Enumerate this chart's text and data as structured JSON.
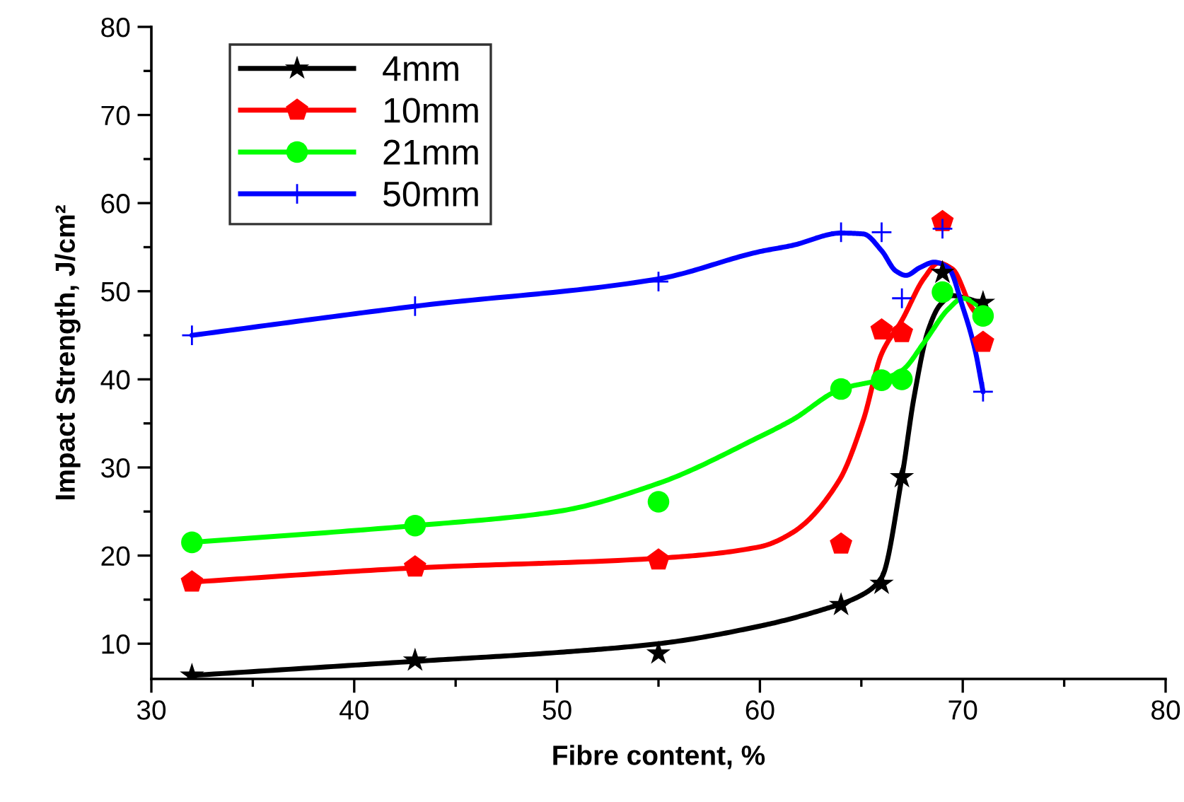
{
  "chart_data": {
    "type": "scatter",
    "xlabel": "Fibre content, %",
    "ylabel": "Impact Strength, J/cm²",
    "xlim": [
      30,
      80
    ],
    "xticks": [
      30,
      40,
      50,
      60,
      70,
      80
    ],
    "ylim": [
      6,
      80
    ],
    "yticks": [
      10,
      20,
      30,
      40,
      50,
      60,
      70,
      80
    ],
    "grid": false,
    "legend": "top left",
    "series": [
      {
        "type": "line",
        "color": "#000000",
        "x": [
          32,
          43,
          50,
          55,
          60,
          63,
          65,
          66,
          67,
          67.6,
          68.3,
          68.9,
          69.5,
          70,
          71
        ],
        "values": [
          6.4,
          8.0,
          9.0,
          10.0,
          12.0,
          13.8,
          15.5,
          17.5,
          28.9,
          38,
          45.6,
          48.5,
          49.5,
          49.3,
          48.6
        ]
      },
      {
        "type": "line",
        "color": "#ff0000",
        "x": [
          32,
          43,
          55,
          60,
          61.6,
          63.9,
          65.1,
          66,
          67,
          68.1,
          68.8,
          69.5,
          70.4,
          71
        ],
        "values": [
          17.0,
          18.6,
          19.7,
          21.0,
          22.6,
          28.5,
          35.4,
          42.9,
          46.7,
          51.5,
          53.2,
          52.5,
          48.3,
          46.4
        ]
      },
      {
        "type": "line",
        "color": "#00ff00",
        "x": [
          32,
          43,
          50,
          55,
          60,
          61.6,
          64,
          66,
          67,
          68.1,
          69.3,
          70,
          71
        ],
        "values": [
          21.5,
          23.4,
          25.0,
          28.2,
          33.5,
          35.4,
          38.9,
          40.0,
          41.0,
          44.2,
          48.0,
          49.2,
          48.0
        ]
      },
      {
        "type": "line",
        "color": "#0000ff",
        "x": [
          32,
          43,
          55,
          60,
          61.6,
          64,
          65.1,
          66,
          66.7,
          67.2,
          67.9,
          68.6,
          69.3,
          70,
          70.6,
          71
        ],
        "values": [
          45.0,
          48.3,
          51.4,
          54.5,
          55.2,
          56.6,
          56.5,
          54.6,
          52.3,
          51.8,
          52.7,
          53.3,
          52.6,
          48.2,
          43.4,
          38.6
        ]
      },
      {
        "name": "4mm",
        "color": "#000000",
        "marker": "star",
        "x": [
          32,
          43,
          55,
          64,
          66,
          67,
          69,
          71
        ],
        "values": [
          6.4,
          8.1,
          8.9,
          14.4,
          16.8,
          28.9,
          52.1,
          48.7
        ]
      },
      {
        "name": "10mm",
        "color": "#ff0000",
        "x": [
          32,
          43,
          55,
          64,
          66,
          67,
          69,
          71
        ],
        "values": [
          17.0,
          18.7,
          19.5,
          21.3,
          45.6,
          45.3,
          57.9,
          44.2
        ]
      },
      {
        "name": "21mm",
        "color": "#00ff00",
        "marker": "circle",
        "x": [
          32,
          43,
          55,
          64,
          66,
          67,
          69,
          71
        ],
        "values": [
          21.5,
          23.4,
          26.1,
          38.9,
          39.9,
          40.0,
          49.9,
          47.2
        ]
      },
      {
        "name": "50mm",
        "color": "#0000ff",
        "marker": "cross",
        "x": [
          32,
          43,
          55,
          64,
          66,
          67,
          69,
          71
        ],
        "values": [
          45.0,
          48.3,
          51.1,
          56.7,
          56.7,
          49.2,
          57.1,
          38.6
        ]
      }
    ]
  }
}
